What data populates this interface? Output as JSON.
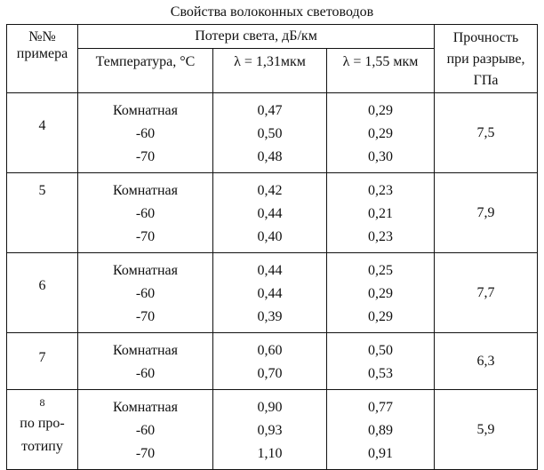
{
  "title": "Свойства волоконных световодов",
  "headers": {
    "number": [
      "№№",
      "примера"
    ],
    "loss_group": "Потери света, дБ/км",
    "temperature": "Температура, °С",
    "lambda1": "λ = 1,31мкм",
    "lambda2": "λ = 1,55 мкм",
    "strength": [
      "Прочность",
      "при разрыве,",
      "ГПа"
    ]
  },
  "groups": [
    {
      "number": "4",
      "temps": [
        "Комнатная",
        "-60",
        "-70"
      ],
      "loss131": [
        "0,47",
        "0,50",
        "0,48"
      ],
      "loss155": [
        "0,29",
        "0,29",
        "0,30"
      ],
      "strength": "7,5"
    },
    {
      "number": "5",
      "temps": [
        "Комнатная",
        "-60",
        "-70"
      ],
      "loss131": [
        "0,42",
        "0,44",
        "0,40"
      ],
      "loss155": [
        "0,23",
        "0,21",
        "0,23"
      ],
      "strength": "7,9"
    },
    {
      "number": "6",
      "temps": [
        "Комнатная",
        "-60",
        "-70"
      ],
      "loss131": [
        "0,44",
        "0,44",
        "0,39"
      ],
      "loss155": [
        "0,25",
        "0,29",
        "0,29"
      ],
      "strength": "7,7"
    },
    {
      "number": "7",
      "temps": [
        "Комнатная",
        "-60"
      ],
      "loss131": [
        "0,60",
        "0,70"
      ],
      "loss155": [
        "0,50",
        "0,53"
      ],
      "strength": "6,3"
    },
    {
      "number": "8",
      "number_note": [
        "по про-",
        "тотипу"
      ],
      "temps": [
        "Комнатная",
        "-60",
        "-70"
      ],
      "loss131": [
        "0,90",
        "0,93",
        "1,10"
      ],
      "loss155": [
        "0,77",
        "0,89",
        "0,91"
      ],
      "strength": "5,9"
    }
  ]
}
